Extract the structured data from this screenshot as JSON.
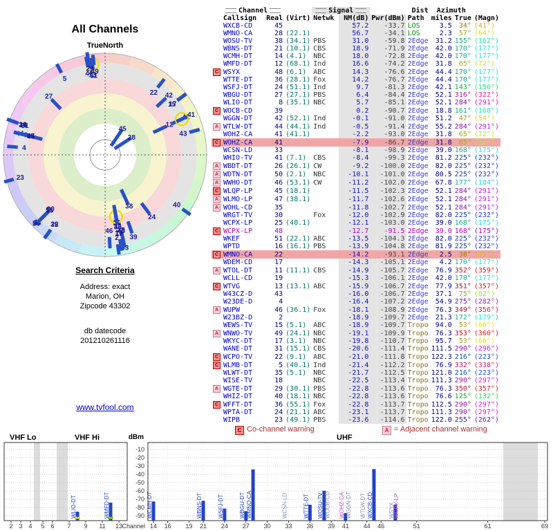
{
  "title": "All Channels",
  "radar": {
    "north_label": "TrueNorth"
  },
  "criteria": {
    "heading": "Search Criteria",
    "address_label": "Address: exact",
    "city": "Marion, OH",
    "zip": "Zipcode 43302",
    "datecode_label": "db datecode",
    "datecode": "201210261116"
  },
  "link_text": "www.tvfool.com",
  "legend": {
    "c_letter": "C",
    "c_text": "Co-channel warning",
    "a_letter": "A",
    "a_text": "= Adjacent channel warning"
  },
  "table_headers": {
    "channel": "Channel",
    "signal": "Signal",
    "dist": "Dist",
    "azimuth": "Azimuth",
    "callsign": "Callsign",
    "real": "Real",
    "virt": "(Virt)",
    "netwk": "Netwk",
    "nm": "NM(dB)",
    "pwr": "Pwr(dBm)",
    "path": "Path",
    "miles": "miles",
    "true": "True",
    "magn": "(Magn)"
  },
  "spectrum": {
    "bands": [
      "VHF Lo",
      "VHF Hi",
      "UHF"
    ],
    "y_label": "dBm",
    "x_label": "Channel",
    "y_ticks": [
      -10,
      -20,
      -30,
      -40,
      -50,
      -60,
      -70,
      -80,
      -90
    ],
    "left_ticks": [
      2,
      3,
      4,
      5,
      6,
      7,
      9,
      11,
      13
    ],
    "right_ticks": [
      14,
      16,
      19,
      21,
      24,
      27,
      30,
      33,
      36,
      39,
      41,
      44,
      46,
      51,
      61,
      69
    ]
  },
  "colors": {
    "bar_blue": "#2343c3",
    "los_green": "#008800",
    "edge_blue": "#3a3ac8",
    "tropo_olive": "#8a6d1a",
    "callsign_blue": "#0000cc",
    "warn_row_bg": "#f0a6a6",
    "magenta_row": "#b000b0"
  },
  "chart_data": [
    {
      "type": "table",
      "columns": [
        "Callsign",
        "Channel Real (Virt)",
        "Netwk",
        "NM(dB)",
        "Pwr(dBm)",
        "Path",
        "Dist miles",
        "Azimuth True (Magn)"
      ],
      "rows": [
        {
          "w": "",
          "cs": "WXCB-CD",
          "re": "45",
          "vi": "",
          "nw": "",
          "nm": "57.2",
          "pw": "-33.7",
          "pa": "LOS",
          "di": "3.5",
          "tr": "34°",
          "mg": "(41°)",
          "hl": "",
          "sp": "b"
        },
        {
          "w": "",
          "cs": "WMNO-CA",
          "re": "28",
          "vi": "(22.1)",
          "nw": "",
          "nm": "56.7",
          "pw": "-34.1",
          "pa": "LOS",
          "di": "2.3",
          "tr": "57°",
          "mg": "(64°)",
          "hl": "",
          "sp": "b"
        },
        {
          "w": "",
          "cs": "WOSU-TV",
          "re": "38",
          "vi": "(34.1)",
          "nw": "PBS",
          "nm": "31.0",
          "pw": "-59.8",
          "pa": "2Edge",
          "di": "31.2",
          "tr": "155°",
          "mg": "(162°)",
          "hl": "",
          "sp": "b"
        },
        {
          "w": "",
          "cs": "WBNS-DT",
          "re": "21",
          "vi": "(10.1)",
          "nw": "CBS",
          "nm": "18.9",
          "pw": "-71.9",
          "pa": "2Edge",
          "di": "42.0",
          "tr": "170°",
          "mg": "(177°)",
          "hl": "",
          "sp": "b"
        },
        {
          "w": "",
          "cs": "WCMH-DT",
          "re": "14",
          "vi": "(4.1)",
          "nw": "NBC",
          "nm": "18.0",
          "pw": "-72.8",
          "pa": "2Edge",
          "di": "42.0",
          "tr": "170°",
          "mg": "(177°)",
          "hl": "",
          "sp": "b"
        },
        {
          "w": "",
          "cs": "WMFD-DT",
          "re": "12",
          "vi": "(68.1)",
          "nw": "Ind",
          "nm": "16.6",
          "pw": "-74.2",
          "pa": "2Edge",
          "di": "31.8",
          "tr": "65°",
          "mg": "(72°)",
          "hl": "",
          "sp": "b",
          "bt": "g"
        },
        {
          "w": "C",
          "cs": "WSYX",
          "re": "48",
          "vi": "(6.1)",
          "nw": "ABC",
          "nm": "14.3",
          "pw": "-76.6",
          "pa": "2Edge",
          "di": "44.4",
          "tr": "170°",
          "mg": "(177°)",
          "hl": "",
          "sp": "g",
          "rg": 1
        },
        {
          "w": "",
          "cs": "WTTE-DT",
          "re": "36",
          "vi": "(28.1)",
          "nw": "Fox",
          "nm": "14.2",
          "pw": "-76.7",
          "pa": "2Edge",
          "di": "44.4",
          "tr": "170°",
          "mg": "(177°)",
          "hl": "",
          "sp": "b"
        },
        {
          "w": "",
          "cs": "WSFJ-DT",
          "re": "24",
          "vi": "(51.1)",
          "nw": "Ind",
          "nm": "9.7",
          "pw": "-81.3",
          "pa": "2Edge",
          "di": "42.1",
          "tr": "143°",
          "mg": "(150°)",
          "hl": "",
          "sp": "b"
        },
        {
          "w": "",
          "cs": "WBGU-DT",
          "re": "27",
          "vi": "(27.1)",
          "nw": "PBS",
          "nm": "6.4",
          "pw": "-84.4",
          "pa": "2Edge",
          "di": "52.1",
          "tr": "316°",
          "mg": "(322°)",
          "hl": "",
          "sp": "b"
        },
        {
          "w": "",
          "cs": "WLIO-DT",
          "re": "8",
          "vi": "(35.1)",
          "nw": "NBC",
          "nm": "5.7",
          "pw": "-85.1",
          "pa": "2Edge",
          "di": "52.1",
          "tr": "284°",
          "mg": "(291°)",
          "hl": "",
          "sp": "b",
          "bt": "y"
        },
        {
          "w": "C",
          "cs": "WOCB-CD",
          "re": "39",
          "vi": "",
          "nw": "",
          "nm": "0.2",
          "pw": "-90.7",
          "pa": "2Edge",
          "di": "18.8",
          "tr": "161°",
          "mg": "(168°)",
          "hl": "",
          "sp": "g"
        },
        {
          "w": "",
          "cs": "WGGN-DT",
          "re": "42",
          "vi": "(52.1)",
          "nw": "Ind",
          "nm": "-0.1",
          "pw": "-91.0",
          "pa": "2Edge",
          "di": "51.2",
          "tr": "47°",
          "mg": "(54°)",
          "hl": "",
          "sp": "g"
        },
        {
          "w": "A",
          "cs": "WTLW-DT",
          "re": "44",
          "vi": "(44.1)",
          "nw": "Ind",
          "nm": "-0.5",
          "pw": "-91.4",
          "pa": "2Edge",
          "di": "55.2",
          "tr": "284°",
          "mg": "(291°)",
          "hl": "",
          "sp": "g"
        },
        {
          "w": "",
          "cs": "WOHZ-CA",
          "re": "41",
          "vi": "(41.1)",
          "nw": "",
          "nm": "-2.2",
          "pw": "-93.0",
          "pa": "2Edge",
          "di": "31.8",
          "tr": "65°",
          "mg": "(72°)",
          "hl": "",
          "sp": ""
        },
        {
          "w": "C",
          "cs": "WOHZ-CA",
          "re": "41",
          "vi": "",
          "nw": "",
          "nm": "-7.9",
          "pw": "-86.7",
          "pa": "2Edge",
          "di": "31.8",
          "tr": "65°",
          "mg": "(72°)",
          "hl": "red",
          "sp": "m",
          "rg": 1
        },
        {
          "w": "",
          "cs": "WCSN-LD",
          "re": "33",
          "vi": "",
          "nw": "",
          "nm": "-8.1",
          "pw": "-98.9",
          "pa": "2Edge",
          "di": "39.0",
          "tr": "168°",
          "mg": "(175°)",
          "hl": "",
          "sp": "g"
        },
        {
          "w": "",
          "cs": "WHIO-TV",
          "re": "41",
          "vi": "(7.1)",
          "nw": "CBS",
          "nm": "-8.4",
          "pw": "-99.3",
          "pa": "2Edge",
          "di": "81.2",
          "tr": "225°",
          "mg": "(232°)",
          "hl": "",
          "sp": ""
        },
        {
          "w": "A",
          "cs": "WBDT-DT",
          "re": "26",
          "vi": "(26.1)",
          "nw": "CW",
          "nm": "-9.2",
          "pw": "-100.0",
          "pa": "2Edge",
          "di": "82.0",
          "tr": "225°",
          "mg": "(232°)",
          "hl": "",
          "sp": ""
        },
        {
          "w": "A",
          "cs": "WDTN-DT",
          "re": "50",
          "vi": "(2.1)",
          "nw": "NBC",
          "nm": "-10.1",
          "pw": "-101.0",
          "pa": "2Edge",
          "di": "80.5",
          "tr": "225°",
          "mg": "(232°)",
          "hl": "",
          "sp": ""
        },
        {
          "w": "A",
          "cs": "WWHO-DT",
          "re": "46",
          "vi": "(53.1)",
          "nw": "CW",
          "nm": "-11.2",
          "pw": "-102.0",
          "pa": "2Edge",
          "di": "67.8",
          "tr": "177°",
          "mg": "(184°)",
          "hl": "",
          "sp": ""
        },
        {
          "w": "C",
          "cs": "WLQP-LP",
          "re": "45",
          "vi": "(18.1)",
          "nw": "",
          "nm": "-11.5",
          "pw": "-102.3",
          "pa": "2Edge",
          "di": "52.1",
          "tr": "284°",
          "mg": "(291°)",
          "hl": "",
          "sp": ""
        },
        {
          "w": "A",
          "cs": "WLMO-LP",
          "re": "47",
          "vi": "(38.1)",
          "nw": "",
          "nm": "-11.7",
          "pw": "-102.6",
          "pa": "2Edge",
          "di": "52.1",
          "tr": "284°",
          "mg": "(291°)",
          "hl": "",
          "sp": ""
        },
        {
          "w": "A",
          "cs": "WOHL-CD",
          "re": "35",
          "vi": "",
          "nw": "",
          "nm": "-11.8",
          "pw": "-102.7",
          "pa": "2Edge",
          "di": "52.1",
          "tr": "284°",
          "mg": "(291°)",
          "hl": "",
          "sp": ""
        },
        {
          "w": "",
          "cs": "WRGT-TV",
          "re": "30",
          "vi": "",
          "nw": "Fox",
          "nm": "-12.0",
          "pw": "-102.9",
          "pa": "2Edge",
          "di": "82.0",
          "tr": "225°",
          "mg": "(232°)",
          "hl": "",
          "sp": ""
        },
        {
          "w": "",
          "cs": "WCPX-LP",
          "re": "25",
          "vi": "(48.1)",
          "nw": "",
          "nm": "-12.1",
          "pw": "-103.0",
          "pa": "2Edge",
          "di": "39.0",
          "tr": "168°",
          "mg": "(175°)",
          "hl": "",
          "sp": ""
        },
        {
          "w": "C",
          "cs": "WCPX-LP",
          "re": "48",
          "vi": "",
          "nw": "",
          "nm": "-12.7",
          "pw": "-91.5",
          "pa": "2Edge",
          "di": "39.0",
          "tr": "168°",
          "mg": "(175°)",
          "hl": "magenta",
          "sp": "m"
        },
        {
          "w": "",
          "cs": "WKEF",
          "re": "51",
          "vi": "(22.1)",
          "nw": "ABC",
          "nm": "-13.5",
          "pw": "-104.3",
          "pa": "2Edge",
          "di": "82.0",
          "tr": "225°",
          "mg": "(232°)",
          "hl": "",
          "sp": ""
        },
        {
          "w": "",
          "cs": "WPTD",
          "re": "16",
          "vi": "(16.1)",
          "nw": "PBS",
          "nm": "-13.9",
          "pw": "-104.8",
          "pa": "2Edge",
          "di": "81.9",
          "tr": "225°",
          "mg": "(232°)",
          "hl": "",
          "sp": ""
        },
        {
          "w": "C",
          "cs": "WMNO-CA",
          "re": "22",
          "vi": "",
          "nw": "",
          "nm": "-14.2",
          "pw": "-93.1",
          "pa": "2Edge",
          "di": "2.5",
          "tr": "38°",
          "mg": "(45°)",
          "hl": "red",
          "sp": ""
        },
        {
          "w": "",
          "cs": "WDEM-CD",
          "re": "17",
          "vi": "",
          "nw": "",
          "nm": "-14.3",
          "pw": "-105.1",
          "pa": "2Edge",
          "di": "4.2",
          "tr": "170°",
          "mg": "(177°)",
          "hl": "",
          "sp": ""
        },
        {
          "w": "A",
          "cs": "WTOL-DT",
          "re": "11",
          "vi": "(11.1)",
          "nw": "CBS",
          "nm": "-14.9",
          "pw": "-105.7",
          "pa": "2Edge",
          "di": "76.9",
          "tr": "352°",
          "mg": "(359°)",
          "hl": "",
          "sp": "",
          "rg": 1
        },
        {
          "w": "",
          "cs": "WCLL-CD",
          "re": "19",
          "vi": "",
          "nw": "",
          "nm": "-15.3",
          "pw": "-106.1",
          "pa": "2Edge",
          "di": "42.0",
          "tr": "170°",
          "mg": "(177°)",
          "hl": "",
          "sp": ""
        },
        {
          "w": "C",
          "cs": "WTVG",
          "re": "13",
          "vi": "(13.1)",
          "nw": "ABC",
          "nm": "-15.9",
          "pw": "-106.7",
          "pa": "2Edge",
          "di": "77.9",
          "tr": "351°",
          "mg": "(357°)",
          "hl": "",
          "sp": ""
        },
        {
          "w": "",
          "cs": "W43CZ-D",
          "re": "43",
          "vi": "",
          "nw": "",
          "nm": "-16.0",
          "pw": "-106.7",
          "pa": "2Edge",
          "di": "37.1",
          "tr": "75°",
          "mg": "(82°)",
          "hl": "",
          "sp": ""
        },
        {
          "w": "",
          "cs": "W23DE-D",
          "re": "4",
          "vi": "",
          "nw": "",
          "nm": "-16.4",
          "pw": "-107.2",
          "pa": "2Edge",
          "di": "54.9",
          "tr": "275°",
          "mg": "(282°)",
          "hl": "",
          "sp": ""
        },
        {
          "w": "A",
          "cs": "WUPW",
          "re": "46",
          "vi": "(36.1)",
          "nw": "Fox",
          "nm": "-18.1",
          "pw": "-108.9",
          "pa": "2Edge",
          "di": "76.3",
          "tr": "349°",
          "mg": "(356°)",
          "hl": "",
          "sp": ""
        },
        {
          "w": "",
          "cs": "W23BZ-D",
          "re": "2",
          "vi": "",
          "nw": "",
          "nm": "-18.9",
          "pw": "-109.7",
          "pa": "2Edge",
          "di": "21.3",
          "tr": "172°",
          "mg": "(179°)",
          "hl": "",
          "sp": ""
        },
        {
          "w": "",
          "cs": "WEWS-TV",
          "re": "15",
          "vi": "(5.1)",
          "nw": "ABC",
          "nm": "-18.9",
          "pw": "-109.7",
          "pa": "Tropo",
          "di": "94.0",
          "tr": "53°",
          "mg": "(60°)",
          "hl": "",
          "sp": ""
        },
        {
          "w": "A",
          "cs": "WNWO-TV",
          "re": "49",
          "vi": "(24.1)",
          "nw": "NBC",
          "nm": "-19.1",
          "pw": "-109.9",
          "pa": "Tropo",
          "di": "76.3",
          "tr": "353°",
          "mg": "(360°)",
          "hl": "",
          "sp": ""
        },
        {
          "w": "",
          "cs": "WKYC-DT",
          "re": "17",
          "vi": "(3.1)",
          "nw": "NBC",
          "nm": "-19.8",
          "pw": "-110.7",
          "pa": "Tropo",
          "di": "95.7",
          "tr": "53°",
          "mg": "(60°)",
          "hl": "",
          "sp": ""
        },
        {
          "w": "",
          "cs": "WANE-DT",
          "re": "31",
          "vi": "(15.1)",
          "nw": "CBS",
          "nm": "-20.6",
          "pw": "-111.4",
          "pa": "Tropo",
          "di": "111.5",
          "tr": "290°",
          "mg": "(296°)",
          "hl": "",
          "sp": ""
        },
        {
          "w": "C",
          "cs": "WCPO-TV",
          "re": "22",
          "vi": "(9.1)",
          "nw": "ABC",
          "nm": "-21.0",
          "pw": "-111.8",
          "pa": "Tropo",
          "di": "122.3",
          "tr": "216°",
          "mg": "(223°)",
          "hl": "",
          "sp": ""
        },
        {
          "w": "C",
          "cs": "WLMB-DT",
          "re": "5",
          "vi": "(40.1)",
          "nw": "Ind",
          "nm": "-21.4",
          "pw": "-112.2",
          "pa": "Tropo",
          "di": "76.9",
          "tr": "332°",
          "mg": "(338°)",
          "hl": "",
          "sp": ""
        },
        {
          "w": "",
          "cs": "WLWT-DT",
          "re": "35",
          "vi": "(5.1)",
          "nw": "NBC",
          "nm": "-21.7",
          "pw": "-112.5",
          "pa": "Tropo",
          "di": "121.0",
          "tr": "216°",
          "mg": "(223°)",
          "hl": "",
          "sp": ""
        },
        {
          "w": "",
          "cs": "WISE-TV",
          "re": "18",
          "vi": "",
          "nw": "NBC",
          "nm": "-22.5",
          "pw": "-113.4",
          "pa": "Tropo",
          "di": "111.3",
          "tr": "290°",
          "mg": "(297°)",
          "hl": "",
          "sp": ""
        },
        {
          "w": "A",
          "cs": "WGTE-DT",
          "re": "29",
          "vi": "(30.1)",
          "nw": "PBS",
          "nm": "-22.8",
          "pw": "-113.6",
          "pa": "Tropo",
          "di": "76.3",
          "tr": "350°",
          "mg": "(357°)",
          "hl": "",
          "sp": ""
        },
        {
          "w": "",
          "cs": "WHIZ-DT",
          "re": "40",
          "vi": "(18.1)",
          "nw": "NBC",
          "nm": "-22.8",
          "pw": "-113.6",
          "pa": "Tropo",
          "di": "76.6",
          "tr": "125°",
          "mg": "(132°)",
          "hl": "",
          "sp": ""
        },
        {
          "w": "C",
          "cs": "WFFT-DT",
          "re": "36",
          "vi": "(55.1)",
          "nw": "Fox",
          "nm": "-22.8",
          "pw": "-113.7",
          "pa": "Tropo",
          "di": "112.5",
          "tr": "290°",
          "mg": "(297°)",
          "hl": "",
          "sp": ""
        },
        {
          "w": "",
          "cs": "WPTA-DT",
          "re": "24",
          "vi": "(21.1)",
          "nw": "ABC",
          "nm": "-23.1",
          "pw": "-113.7",
          "pa": "Tropo",
          "di": "111.3",
          "tr": "290°",
          "mg": "(297°)",
          "hl": "",
          "sp": ""
        },
        {
          "w": "",
          "cs": "WIPB",
          "re": "23",
          "vi": "(49.1)",
          "nw": "PBS",
          "nm": "-23.6",
          "pw": "-114.6",
          "pa": "Tropo",
          "di": "122.0",
          "tr": "255°",
          "mg": "(262°)",
          "hl": "",
          "sp": ""
        }
      ]
    },
    {
      "type": "radar",
      "title": "All Channels",
      "angle": "azimuth true (degrees, north up)",
      "radius": "signal strength NM(dB), strongest at center",
      "labels": "real channel numbers",
      "source": "rows of chart_data[0]"
    },
    {
      "type": "bar",
      "title": "received power by RF channel (VHF / UHF panels)",
      "x": "real channel number",
      "y": "power dBm",
      "ylim": [
        -90,
        -10
      ],
      "source": "rows of chart_data[0]"
    }
  ]
}
